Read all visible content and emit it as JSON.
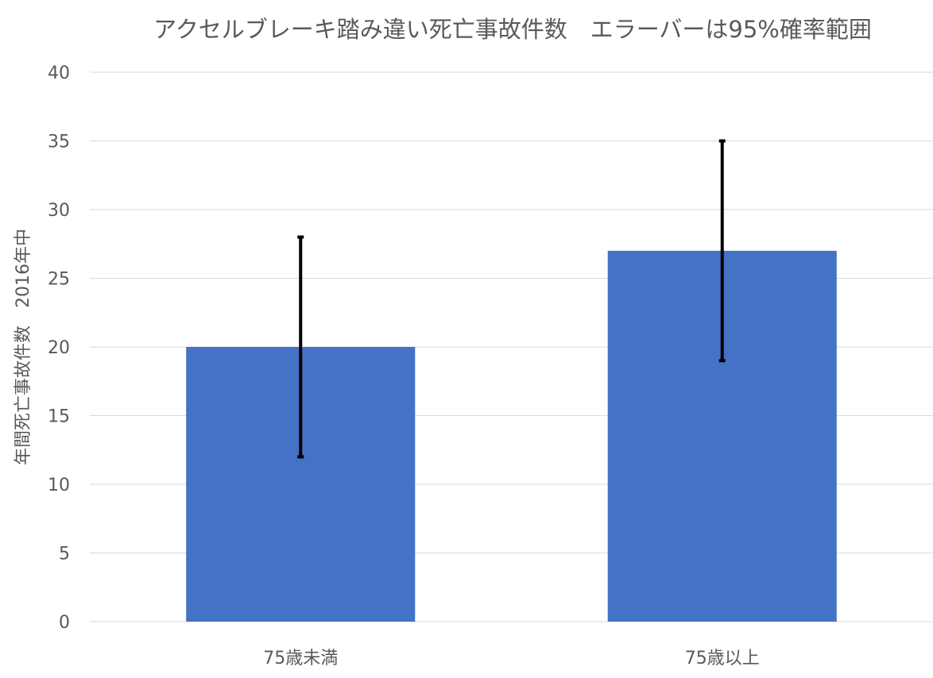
{
  "chart_data": {
    "type": "bar",
    "title": "アクセルブレーキ踏み違い死亡事故件数　エラーバーは95%確率範囲",
    "xlabel": "",
    "ylabel": "年間死亡事故件数　2016年中",
    "categories": [
      "75歳未満",
      "75歳以上"
    ],
    "values": [
      20,
      27
    ],
    "error_low": [
      12,
      19
    ],
    "error_high": [
      28,
      35
    ],
    "ylim": [
      0,
      40
    ],
    "yticks": [
      0,
      5,
      10,
      15,
      20,
      25,
      30,
      35,
      40
    ],
    "grid": true,
    "legend": "none",
    "colors": {
      "bar": "#4472c4",
      "error_bar": "#000000",
      "grid": "#d9d9d9",
      "text": "#595959"
    }
  }
}
